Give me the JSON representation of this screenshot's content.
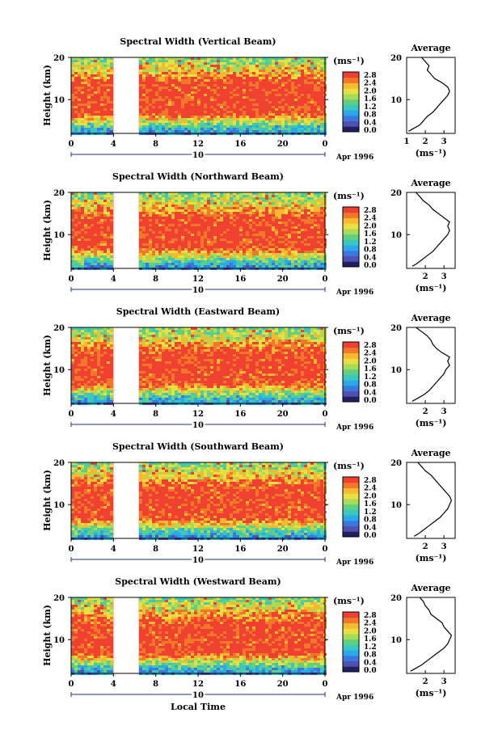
{
  "figure": {
    "xlabel": "Local Time",
    "date_label": "Apr 1996",
    "day_label": "10"
  },
  "colorbar": {
    "unit": "(ms⁻¹)",
    "tick_labels": [
      "0.0",
      "0.4",
      "0.8",
      "1.2",
      "1.6",
      "2.0",
      "2.4",
      "2.8"
    ],
    "colors": [
      "#202060",
      "#5050b0",
      "#3a78e0",
      "#2aa8e8",
      "#38c8c0",
      "#60d080",
      "#a8dc58",
      "#e8e040",
      "#f8b830",
      "#f07828",
      "#f04030"
    ]
  },
  "chart_data": [
    {
      "type": "heatmap",
      "title": "Spectral Width (Vertical Beam)",
      "ylabel": "Height (km)",
      "xticks": [
        "0",
        "4",
        "8",
        "12",
        "16",
        "20",
        "0"
      ],
      "yticks": [
        "20",
        "10"
      ],
      "xlim": [
        0,
        24
      ],
      "ylim": [
        2,
        20
      ],
      "gap_hours": [
        4.0,
        6.4
      ],
      "colorbar_range": [
        0.0,
        2.8
      ],
      "average_profile": {
        "title": "Average",
        "xlabel": "(ms⁻¹)",
        "xticks": [
          "1",
          "2",
          "3"
        ],
        "yticks": [
          "20",
          "10"
        ],
        "xlim": [
          1.0,
          3.6
        ],
        "ylim": [
          2,
          20
        ],
        "height_km": [
          2.5,
          3,
          4,
          5,
          6,
          7,
          8,
          9,
          10,
          11,
          12,
          13,
          14,
          15,
          16,
          17,
          18,
          19,
          20
        ],
        "width_ms": [
          1.1,
          1.3,
          1.7,
          1.9,
          2.1,
          2.4,
          2.6,
          2.8,
          3.0,
          3.2,
          3.3,
          3.2,
          2.9,
          2.5,
          2.3,
          2.1,
          2.2,
          2.0,
          1.8
        ]
      }
    },
    {
      "type": "heatmap",
      "title": "Spectral Width (Northward Beam)",
      "ylabel": "Height (km)",
      "xticks": [
        "0",
        "4",
        "8",
        "12",
        "16",
        "20",
        "0"
      ],
      "yticks": [
        "20",
        "10"
      ],
      "xlim": [
        0,
        24
      ],
      "ylim": [
        2,
        20
      ],
      "gap_hours": [
        4.0,
        6.4
      ],
      "colorbar_range": [
        0.0,
        2.8
      ],
      "average_profile": {
        "title": "Average",
        "xlabel": "(ms⁻¹)",
        "xticks": [
          "2",
          "3"
        ],
        "yticks": [
          "20",
          "10"
        ],
        "xlim": [
          1.0,
          3.6
        ],
        "ylim": [
          2,
          20
        ],
        "height_km": [
          2.5,
          3,
          4,
          5,
          6,
          7,
          8,
          9,
          10,
          11,
          12,
          13,
          14,
          15,
          16,
          17,
          18,
          19,
          20
        ],
        "width_ms": [
          1.3,
          1.5,
          1.8,
          2.1,
          2.4,
          2.6,
          2.8,
          3.0,
          3.2,
          3.3,
          3.2,
          3.3,
          3.0,
          2.7,
          2.4,
          2.2,
          1.9,
          1.7,
          1.5
        ]
      }
    },
    {
      "type": "heatmap",
      "title": "Spectral Width (Eastward Beam)",
      "ylabel": "Height (km)",
      "xticks": [
        "0",
        "4",
        "8",
        "12",
        "16",
        "20",
        "0"
      ],
      "yticks": [
        "20",
        "10"
      ],
      "xlim": [
        0,
        24
      ],
      "ylim": [
        2,
        20
      ],
      "gap_hours": [
        4.0,
        6.4
      ],
      "colorbar_range": [
        0.0,
        2.8
      ],
      "average_profile": {
        "title": "Average",
        "xlabel": "(ms⁻¹)",
        "xticks": [
          "2",
          "3"
        ],
        "yticks": [
          "20",
          "10"
        ],
        "xlim": [
          1.0,
          3.6
        ],
        "ylim": [
          2,
          20
        ],
        "height_km": [
          2.5,
          3,
          4,
          5,
          6,
          7,
          8,
          9,
          10,
          11,
          12,
          13,
          14,
          15,
          16,
          17,
          18,
          19,
          20
        ],
        "width_ms": [
          1.3,
          1.5,
          1.9,
          2.2,
          2.4,
          2.6,
          2.8,
          3.0,
          3.1,
          3.3,
          3.2,
          3.3,
          2.9,
          2.6,
          2.4,
          2.3,
          2.1,
          1.8,
          1.5
        ]
      }
    },
    {
      "type": "heatmap",
      "title": "Spectral Width (Southward Beam)",
      "ylabel": "Height (km)",
      "xticks": [
        "0",
        "4",
        "8",
        "12",
        "16",
        "20",
        "0"
      ],
      "yticks": [
        "20",
        "10"
      ],
      "xlim": [
        0,
        24
      ],
      "ylim": [
        2,
        20
      ],
      "gap_hours": [
        4.0,
        6.4
      ],
      "colorbar_range": [
        0.0,
        2.8
      ],
      "average_profile": {
        "title": "Average",
        "xlabel": "(ms⁻¹)",
        "xticks": [
          "2",
          "3"
        ],
        "yticks": [
          "20",
          "10"
        ],
        "xlim": [
          1.0,
          3.6
        ],
        "ylim": [
          2,
          20
        ],
        "height_km": [
          2.5,
          3,
          4,
          5,
          6,
          7,
          8,
          9,
          10,
          11,
          12,
          13,
          14,
          15,
          16,
          17,
          18,
          19,
          20
        ],
        "width_ms": [
          1.4,
          1.6,
          1.9,
          2.2,
          2.5,
          2.8,
          3.0,
          3.2,
          3.3,
          3.4,
          3.3,
          3.1,
          2.9,
          2.7,
          2.5,
          2.3,
          2.0,
          1.8,
          1.6
        ]
      }
    },
    {
      "type": "heatmap",
      "title": "Spectral Width (Westward Beam)",
      "ylabel": "Height (km)",
      "xticks": [
        "0",
        "4",
        "8",
        "12",
        "16",
        "20",
        "0"
      ],
      "yticks": [
        "20",
        "10"
      ],
      "xlim": [
        0,
        24
      ],
      "ylim": [
        2,
        20
      ],
      "gap_hours": [
        4.0,
        6.4
      ],
      "colorbar_range": [
        0.0,
        2.8
      ],
      "average_profile": {
        "title": "Average",
        "xlabel": "(ms⁻¹)",
        "xticks": [
          "2",
          "3"
        ],
        "yticks": [
          "20",
          "10"
        ],
        "xlim": [
          1.0,
          3.6
        ],
        "ylim": [
          2,
          20
        ],
        "height_km": [
          2.5,
          3,
          4,
          5,
          6,
          7,
          8,
          9,
          10,
          11,
          12,
          13,
          14,
          15,
          16,
          17,
          18,
          19,
          20
        ],
        "width_ms": [
          1.2,
          1.4,
          1.8,
          2.1,
          2.4,
          2.7,
          3.0,
          3.2,
          3.3,
          3.4,
          3.2,
          3.0,
          2.9,
          2.6,
          2.3,
          2.2,
          2.0,
          1.9,
          1.7
        ]
      }
    }
  ]
}
